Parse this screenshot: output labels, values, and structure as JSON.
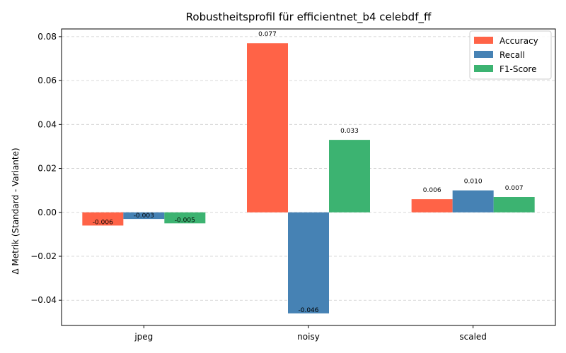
{
  "chart_data": {
    "type": "bar",
    "title": "Robustheitsprofil für efficientnet_b4 celebdf_ff",
    "xlabel": "",
    "ylabel": "Δ Metrik (Standard - Variante)",
    "categories": [
      "jpeg",
      "noisy",
      "scaled"
    ],
    "series": [
      {
        "name": "Accuracy",
        "color": "#ff6347",
        "values": [
          -0.006,
          0.077,
          0.006
        ],
        "labels": [
          "-0.006",
          "0.077",
          "0.006"
        ]
      },
      {
        "name": "Recall",
        "color": "#4682b4",
        "values": [
          -0.003,
          -0.046,
          0.01
        ],
        "labels": [
          "-0.003",
          "-0.046",
          "0.010"
        ]
      },
      {
        "name": "F1-Score",
        "color": "#3cb371",
        "values": [
          -0.005,
          0.033,
          0.007
        ],
        "labels": [
          "-0.005",
          "0.033",
          "0.007"
        ]
      }
    ],
    "ylim": [
      -0.0515,
      0.0835
    ],
    "yticks": [
      -0.04,
      -0.02,
      0.0,
      0.02,
      0.04,
      0.06,
      0.08
    ],
    "ytick_labels": [
      "−0.04",
      "−0.02",
      "0.00",
      "0.02",
      "0.04",
      "0.06",
      "0.08"
    ],
    "grid": "y-dashed",
    "legend_position": "top-right"
  }
}
